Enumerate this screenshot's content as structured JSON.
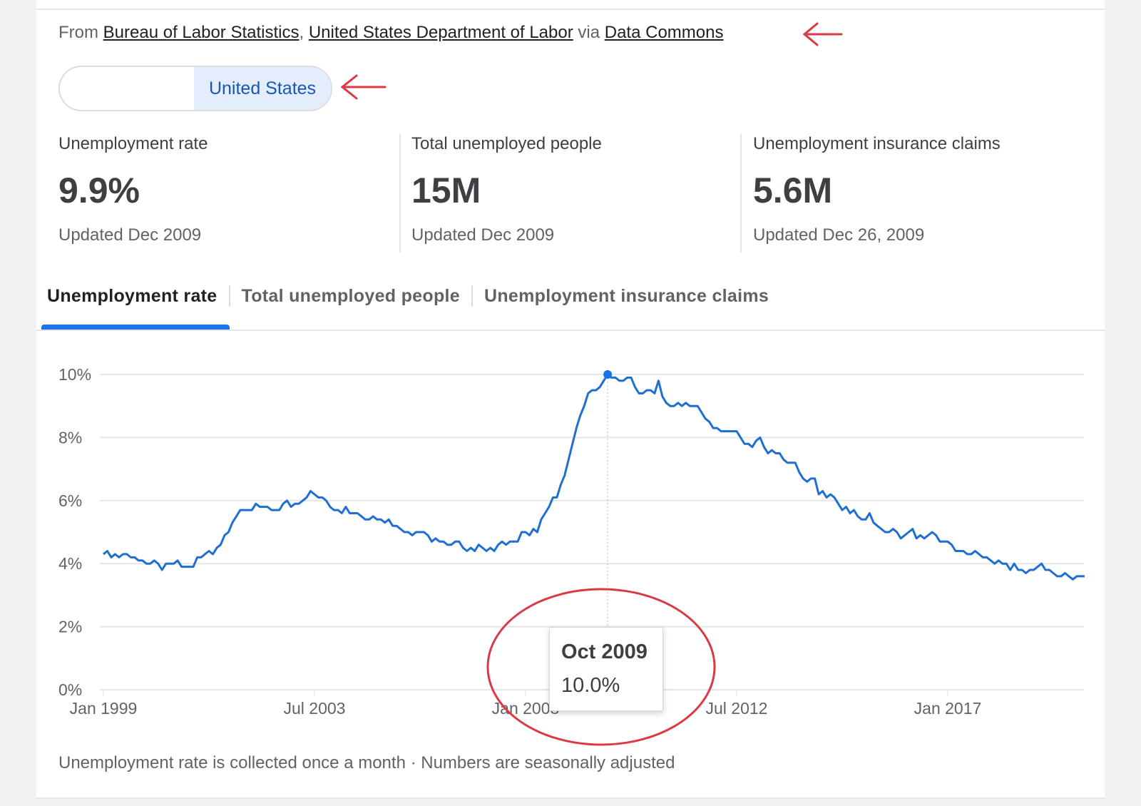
{
  "source": {
    "prefix": "From",
    "links": [
      "Bureau of Labor Statistics",
      "United States Department of Labor",
      "Data Commons"
    ],
    "separator": ",",
    "via": "via"
  },
  "place_selector": {
    "selected": "United States"
  },
  "stats": [
    {
      "label": "Unemployment rate",
      "value": "9.9%",
      "updated": "Updated Dec 2009"
    },
    {
      "label": "Total unemployed people",
      "value": "15M",
      "updated": "Updated Dec 2009"
    },
    {
      "label": "Unemployment insurance claims",
      "value": "5.6M",
      "updated": "Updated Dec 26, 2009"
    }
  ],
  "tabs": [
    {
      "label": "Unemployment rate",
      "active": true
    },
    {
      "label": "Total unemployed people",
      "active": false
    },
    {
      "label": "Unemployment insurance claims",
      "active": false
    }
  ],
  "colors": {
    "accent": "#1a73e8",
    "line": "#1f6fd1",
    "annotation": "#d93a45"
  },
  "chart_data": {
    "type": "line",
    "frequency": "monthly",
    "ylim": [
      0,
      10
    ],
    "yticks": [
      "0%",
      "2%",
      "4%",
      "6%",
      "8%",
      "10%"
    ],
    "xticks": [
      "Jan 1999",
      "Jul 2003",
      "Jan 2008",
      "Jul 2012",
      "Jan 2017"
    ],
    "grid": true,
    "values_by_year": {
      "1999": [
        4.3,
        4.4,
        4.2,
        4.3,
        4.2,
        4.3,
        4.3,
        4.2,
        4.2,
        4.1,
        4.1,
        4.0
      ],
      "2000": [
        4.0,
        4.1,
        4.0,
        3.8,
        4.0,
        4.0,
        4.0,
        4.1,
        3.9,
        3.9,
        3.9,
        3.9
      ],
      "2001": [
        4.2,
        4.2,
        4.3,
        4.4,
        4.3,
        4.5,
        4.6,
        4.9,
        5.0,
        5.3,
        5.5,
        5.7
      ],
      "2002": [
        5.7,
        5.7,
        5.7,
        5.9,
        5.8,
        5.8,
        5.8,
        5.7,
        5.7,
        5.7,
        5.9,
        6.0
      ],
      "2003": [
        5.8,
        5.9,
        5.9,
        6.0,
        6.1,
        6.3,
        6.2,
        6.1,
        6.1,
        6.0,
        5.8,
        5.7
      ],
      "2004": [
        5.7,
        5.6,
        5.8,
        5.6,
        5.6,
        5.6,
        5.5,
        5.4,
        5.4,
        5.5,
        5.4,
        5.4
      ],
      "2005": [
        5.3,
        5.4,
        5.2,
        5.2,
        5.1,
        5.0,
        5.0,
        4.9,
        5.0,
        5.0,
        5.0,
        4.9
      ],
      "2006": [
        4.7,
        4.8,
        4.7,
        4.7,
        4.6,
        4.6,
        4.7,
        4.7,
        4.5,
        4.4,
        4.5,
        4.4
      ],
      "2007": [
        4.6,
        4.5,
        4.4,
        4.5,
        4.4,
        4.6,
        4.7,
        4.6,
        4.7,
        4.7,
        4.7,
        5.0
      ],
      "2008": [
        5.0,
        4.9,
        5.1,
        5.0,
        5.4,
        5.6,
        5.8,
        6.1,
        6.1,
        6.5,
        6.8,
        7.3
      ],
      "2009": [
        7.8,
        8.3,
        8.7,
        9.0,
        9.4,
        9.5,
        9.5,
        9.6,
        9.8,
        10.0,
        9.9,
        9.9
      ],
      "2010": [
        9.8,
        9.8,
        9.9,
        9.9,
        9.6,
        9.4,
        9.4,
        9.5,
        9.5,
        9.4,
        9.8,
        9.3
      ],
      "2011": [
        9.1,
        9.0,
        9.0,
        9.1,
        9.0,
        9.1,
        9.0,
        9.0,
        9.0,
        8.8,
        8.6,
        8.5
      ],
      "2012": [
        8.3,
        8.3,
        8.2,
        8.2,
        8.2,
        8.2,
        8.2,
        8.0,
        7.8,
        7.8,
        7.7,
        7.9
      ],
      "2013": [
        8.0,
        7.7,
        7.5,
        7.6,
        7.5,
        7.5,
        7.3,
        7.2,
        7.2,
        7.2,
        6.9,
        6.7
      ],
      "2014": [
        6.6,
        6.7,
        6.7,
        6.2,
        6.3,
        6.1,
        6.2,
        6.1,
        5.9,
        5.7,
        5.8,
        5.6
      ],
      "2015": [
        5.7,
        5.5,
        5.4,
        5.4,
        5.6,
        5.3,
        5.2,
        5.1,
        5.0,
        5.0,
        5.1,
        5.0
      ],
      "2016": [
        4.8,
        4.9,
        5.0,
        5.1,
        4.8,
        4.9,
        4.8,
        4.9,
        5.0,
        4.9,
        4.7,
        4.7
      ],
      "2017": [
        4.7,
        4.6,
        4.4,
        4.4,
        4.4,
        4.3,
        4.3,
        4.4,
        4.3,
        4.2,
        4.2,
        4.1
      ],
      "2018": [
        4.0,
        4.1,
        4.0,
        4.0,
        3.8,
        4.0,
        3.8,
        3.8,
        3.7,
        3.8,
        3.8,
        3.9
      ],
      "2019": [
        4.0,
        3.8,
        3.8,
        3.7,
        3.6,
        3.6,
        3.7,
        3.6,
        3.5,
        3.6,
        3.6,
        3.6
      ]
    },
    "highlight": {
      "label": "Oct 2009",
      "value_text": "10.0%",
      "year": "2009",
      "month_index": 9
    }
  },
  "footnote": "Unemployment rate is collected once a month · Numbers are seasonally adjusted"
}
